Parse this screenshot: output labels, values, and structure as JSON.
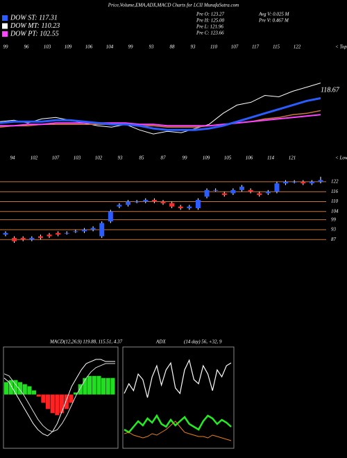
{
  "header": {
    "title": "Price,Volume,EMA,ADX,MACD Charts for LCII MunafaSutra.com",
    "legend": [
      {
        "label": "DOW ST: 117.31",
        "color": "#2a5cff"
      },
      {
        "label": "DOW MT: 110.23",
        "color": "#ffffff"
      },
      {
        "label": "DOW PT: 102.55",
        "color": "#ff44ff"
      }
    ],
    "info": [
      "Pre O: 123.27",
      "Pre H: 125.00",
      "Pre L: 121.96",
      "Pre C: 123.66",
      "Avg V: 0.025 M",
      "Pre V: 0.467 M"
    ]
  },
  "chart_data": [
    {
      "type": "line",
      "tops": [
        99,
        96,
        103,
        109,
        106,
        104,
        99,
        93,
        88,
        93,
        110,
        107,
        117,
        115,
        122
      ],
      "tops_label": "< Tops",
      "lows": [
        94,
        102,
        107,
        103,
        102,
        93,
        85,
        87,
        99,
        109,
        105,
        106,
        114,
        121
      ],
      "lows_label": "< Lows",
      "last_label": 118.67,
      "ylim": [
        76,
        154
      ],
      "series": [
        {
          "color": "#ffffff",
          "width": 1,
          "values": [
            96,
            97,
            95,
            98,
            99,
            97,
            95,
            93,
            92,
            94,
            90,
            87,
            89,
            88,
            91,
            94,
            102,
            108,
            110,
            115,
            114,
            118,
            121,
            124
          ]
        },
        {
          "color": "#c8763a",
          "width": 1.5,
          "values": [
            92,
            93,
            93,
            94,
            94,
            94,
            94,
            94,
            94,
            94,
            93,
            93,
            92,
            92,
            92,
            93,
            94,
            95,
            96,
            98,
            99,
            101,
            102,
            104
          ]
        },
        {
          "color": "#ff44ff",
          "width": 2,
          "values": [
            93,
            93,
            94,
            94,
            95,
            95,
            95,
            95,
            95,
            95,
            94,
            94,
            93,
            93,
            93,
            93,
            94,
            95,
            96,
            97,
            98,
            99,
            100,
            101
          ]
        },
        {
          "color": "#2a5cff",
          "width": 3,
          "values": [
            95,
            96,
            96,
            96,
            97,
            97,
            96,
            95,
            94,
            94,
            93,
            91,
            90,
            90,
            90,
            91,
            93,
            96,
            99,
            102,
            105,
            108,
            111,
            113
          ]
        }
      ]
    },
    {
      "type": "candlestick",
      "ylim": [
        85,
        127
      ],
      "yticks": [
        122,
        116,
        110,
        104,
        99,
        93,
        87
      ],
      "grid_color": "#c8763a",
      "up_color": "#2a5cff",
      "down_color": "#ff2a2a",
      "open": [
        90,
        88,
        88,
        87,
        89,
        90,
        91,
        91,
        92,
        92,
        93,
        89,
        98,
        107,
        108,
        110,
        110,
        111,
        110,
        109,
        107,
        106,
        106,
        113,
        117,
        115,
        115,
        117,
        117,
        115,
        115,
        116,
        121,
        122,
        122,
        121,
        122
      ],
      "high": [
        92,
        89,
        89,
        89,
        90,
        91,
        92,
        92,
        93,
        94,
        95,
        98,
        105,
        109,
        111,
        111,
        112,
        112,
        111,
        110,
        108,
        108,
        112,
        118,
        118,
        116,
        118,
        120,
        118,
        116,
        117,
        122,
        123,
        123,
        123,
        123,
        125
      ],
      "low": [
        89,
        85,
        86,
        86,
        87,
        88,
        89,
        90,
        91,
        91,
        92,
        88,
        97,
        106,
        107,
        109,
        109,
        109,
        108,
        106,
        105,
        105,
        105,
        112,
        116,
        113,
        114,
        116,
        115,
        113,
        114,
        115,
        120,
        121,
        120,
        120,
        121
      ],
      "close": [
        91,
        86,
        87,
        88,
        88,
        89,
        90,
        91,
        92,
        93,
        94,
        97,
        104,
        108,
        110,
        110,
        111,
        110,
        109,
        107,
        106,
        107,
        111,
        117,
        117,
        114,
        117,
        119,
        116,
        114,
        116,
        121,
        122,
        122,
        121,
        122,
        123
      ]
    },
    {
      "type": "macd",
      "label": "MACD:",
      "params": "(12,26,9) 119.88, 115.51, 4.37",
      "ylim": [
        -25,
        22
      ],
      "histogram": [
        6,
        7,
        7,
        6,
        5,
        4,
        2,
        -1,
        -4,
        -7,
        -9,
        -10,
        -9,
        -7,
        -4,
        1,
        5,
        8,
        9,
        9,
        9,
        8,
        8,
        8
      ],
      "up_color": "#22dd22",
      "down_color": "#ff2222",
      "series": [
        {
          "color": "#ffffff",
          "values": [
            8,
            6,
            2,
            -2,
            -6,
            -10,
            -14,
            -17,
            -19,
            -20,
            -18,
            -14,
            -8,
            -2,
            4,
            8,
            12,
            15,
            16,
            17,
            17,
            16,
            16,
            16
          ]
        },
        {
          "color": "#dddddd",
          "values": [
            10,
            9,
            6,
            3,
            0,
            -4,
            -8,
            -12,
            -15,
            -17,
            -18,
            -17,
            -14,
            -10,
            -5,
            0,
            4,
            8,
            11,
            13,
            14,
            15,
            15,
            15
          ]
        }
      ]
    },
    {
      "type": "adx",
      "label": "ADX",
      "params": "(14 day) 56, +32, 9",
      "ylim": [
        0,
        70
      ],
      "series": [
        {
          "color": "#ffffff",
          "width": 1.2,
          "values": [
            38,
            45,
            40,
            52,
            48,
            35,
            50,
            58,
            44,
            55,
            60,
            42,
            38,
            55,
            62,
            48,
            45,
            58,
            52,
            40,
            55,
            50,
            58,
            60
          ]
        },
        {
          "color": "#22ee22",
          "width": 2.5,
          "values": [
            12,
            10,
            14,
            18,
            15,
            20,
            17,
            22,
            16,
            14,
            19,
            15,
            18,
            21,
            16,
            14,
            12,
            18,
            22,
            20,
            16,
            19,
            17,
            14
          ]
        },
        {
          "color": "#e8801a",
          "width": 1,
          "values": [
            9,
            10,
            8,
            7,
            6,
            7,
            9,
            8,
            10,
            12,
            15,
            18,
            14,
            10,
            9,
            8,
            7,
            7,
            6,
            8,
            7,
            6,
            5,
            4
          ]
        }
      ]
    }
  ]
}
